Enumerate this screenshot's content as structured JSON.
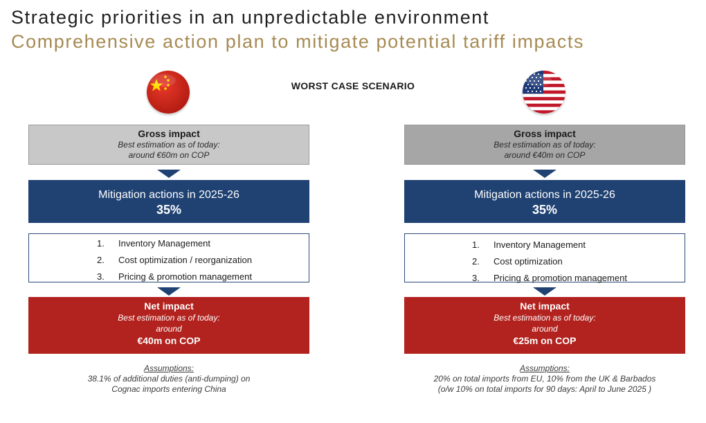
{
  "header": {
    "title": "Strategic priorities in an unpredictable environment",
    "subtitle": "Comprehensive action plan to mitigate potential tariff impacts"
  },
  "scenario_label": "WORST CASE SCENARIO",
  "colors": {
    "subtitle_gold": "#a68a52",
    "mitigation_blue": "#1f4273",
    "net_red": "#b2221e",
    "gross_grey_china": "#c8c8c8",
    "gross_grey_us": "#a6a6a6"
  },
  "china": {
    "flag_icon": "china-flag-icon",
    "gross": {
      "heading": "Gross impact",
      "line1": "Best estimation as of today:",
      "line2": "around €60m on COP"
    },
    "mitigation": {
      "heading": "Mitigation actions in 2025-26",
      "percent": "35%"
    },
    "actions": [
      {
        "num": "1.",
        "text": "Inventory Management"
      },
      {
        "num": "2.",
        "text": "Cost optimization / reorganization"
      },
      {
        "num": "3.",
        "text": "Pricing & promotion management"
      }
    ],
    "net": {
      "heading": "Net impact",
      "line1": "Best estimation as of today:",
      "line2": "around",
      "value": "€40m on COP"
    },
    "assumptions": {
      "label": "Assumptions:",
      "line1": "38.1% of additional duties (anti-dumping) on",
      "line2": "Cognac imports entering China"
    }
  },
  "us": {
    "flag_icon": "us-flag-icon",
    "gross": {
      "heading": "Gross impact",
      "line1": "Best estimation as of today:",
      "line2": "around €40m on COP"
    },
    "mitigation": {
      "heading": "Mitigation actions in 2025-26",
      "percent": "35%"
    },
    "actions": [
      {
        "num": "1.",
        "text": "Inventory Management"
      },
      {
        "num": "2.",
        "text": "Cost optimization"
      },
      {
        "num": "3.",
        "text": "Pricing & promotion management"
      }
    ],
    "net": {
      "heading": "Net impact",
      "line1": "Best estimation as of today:",
      "line2": "around",
      "value": "€25m on COP"
    },
    "assumptions": {
      "label": "Assumptions:",
      "line1": "20% on total imports from EU, 10% from the UK & Barbados",
      "line2": "(o/w 10% on total imports for 90 days: April to June 2025 )"
    }
  }
}
